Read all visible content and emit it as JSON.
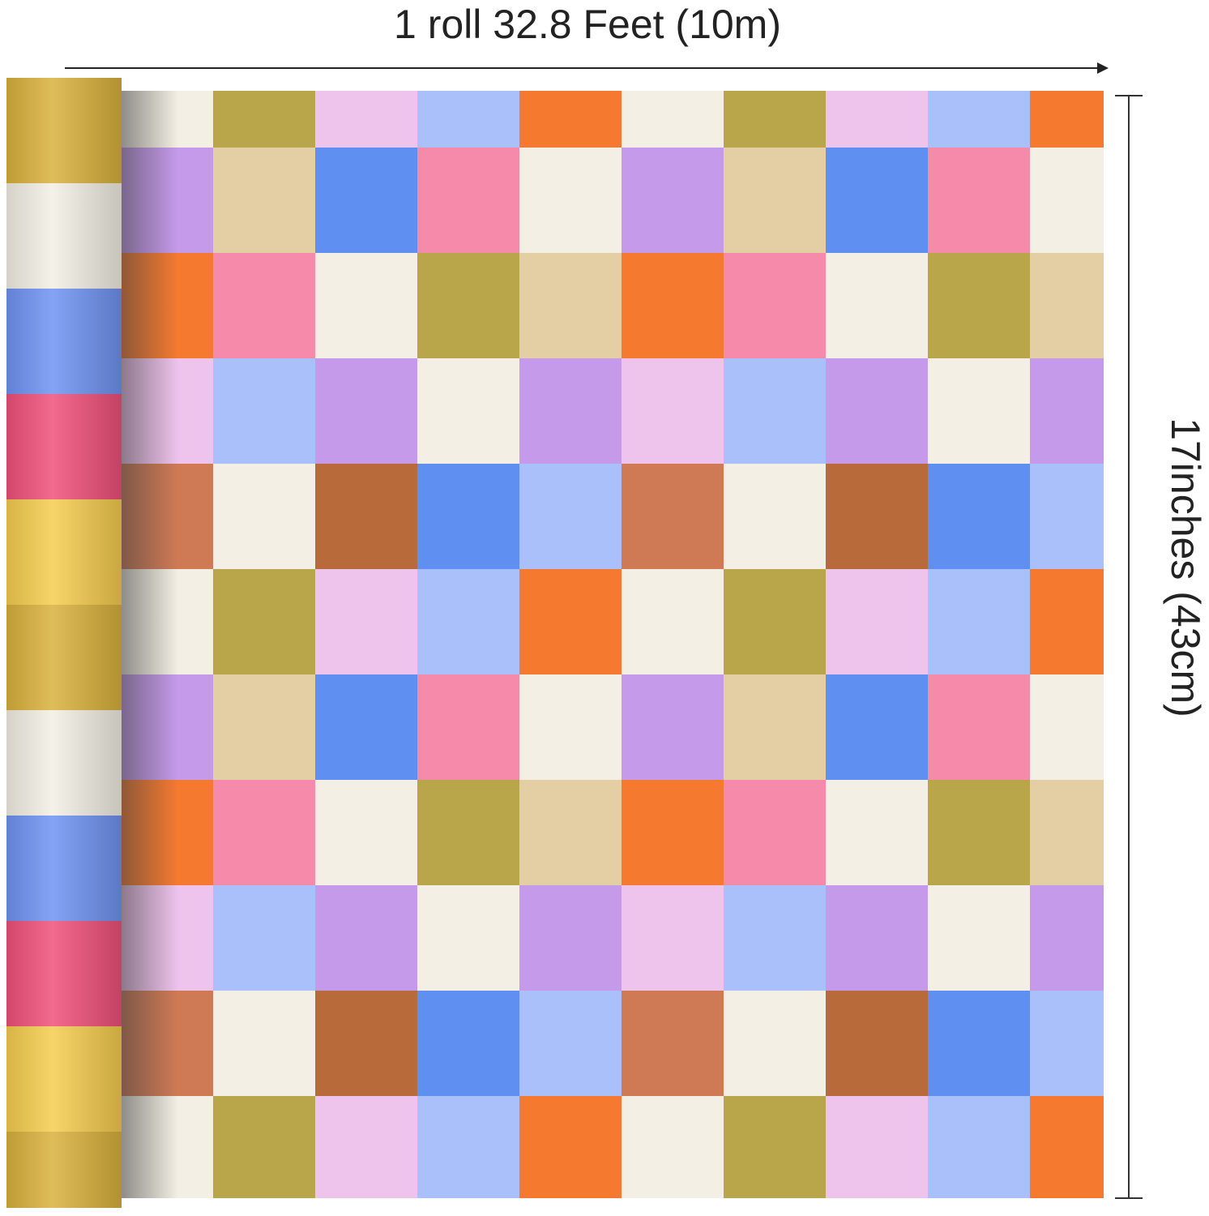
{
  "labels": {
    "length": "1 roll 32.8 Feet (10m)",
    "height": "17inches (43cm)"
  },
  "colors": {
    "cream": "#f3efe4",
    "olive": "#b9a54a",
    "lightpink": "#eec3ec",
    "lightblue": "#a9c0fb",
    "orange": "#f57a30",
    "purple": "#c59aeb",
    "tan": "#e3cfa3",
    "blue": "#5f8ff0",
    "pink": "#f58aab",
    "brown": "#b86a3a",
    "terracotta": "#d07a55",
    "ochre": "#d9b13c",
    "yellow": "#f6cd4f",
    "rollblue": "#6f93f2",
    "rollpink": "#f0507a"
  },
  "pattern": [
    [
      "cream",
      "olive",
      "lightpink",
      "lightblue",
      "orange"
    ],
    [
      "purple",
      "tan",
      "blue",
      "pink",
      "cream"
    ],
    [
      "orange",
      "pink",
      "cream",
      "olive",
      "tan"
    ],
    [
      "lightpink",
      "lightblue",
      "purple",
      "cream",
      "purple"
    ],
    [
      "terracotta",
      "cream",
      "brown",
      "blue",
      "lightblue"
    ]
  ],
  "roll_stripes": [
    "ochre",
    "cream",
    "rollblue",
    "rollpink",
    "yellow",
    "ochre",
    "cream",
    "rollblue",
    "rollpink",
    "yellow",
    "ochre"
  ]
}
